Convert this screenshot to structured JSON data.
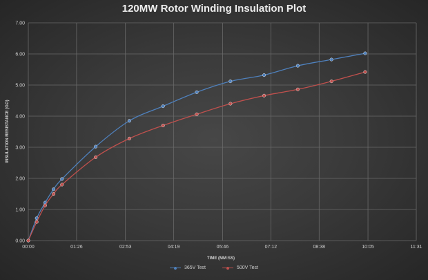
{
  "chart_data": {
    "type": "line",
    "title": "120MW Rotor Winding Insulation Plot",
    "xlabel": "TIME (MM:SS)",
    "ylabel": "INSULATION RESISTANCE (GΩ)",
    "xlim": [
      0,
      691
    ],
    "ylim": [
      0,
      7
    ],
    "x_ticks": [
      {
        "value": 0,
        "label": "00:00"
      },
      {
        "value": 86,
        "label": "01:26"
      },
      {
        "value": 173,
        "label": "02:53"
      },
      {
        "value": 259,
        "label": "04:19"
      },
      {
        "value": 346,
        "label": "05:46"
      },
      {
        "value": 432,
        "label": "07:12"
      },
      {
        "value": 518,
        "label": "08:38"
      },
      {
        "value": 605,
        "label": "10:05"
      },
      {
        "value": 691,
        "label": "11:31"
      }
    ],
    "y_ticks": [
      {
        "value": 0,
        "label": "0.00"
      },
      {
        "value": 1,
        "label": "1.00"
      },
      {
        "value": 2,
        "label": "2.00"
      },
      {
        "value": 3,
        "label": "3.00"
      },
      {
        "value": 4,
        "label": "4.00"
      },
      {
        "value": 5,
        "label": "5.00"
      },
      {
        "value": 6,
        "label": "6.00"
      },
      {
        "value": 7,
        "label": "7.00"
      }
    ],
    "grid": true,
    "legend_position": "bottom",
    "series": [
      {
        "name": "365V Test",
        "color": "#4f81bd",
        "x": [
          0,
          15,
          30,
          45,
          60,
          120,
          180,
          240,
          300,
          360,
          420,
          480,
          540,
          600
        ],
        "y": [
          0.0,
          0.72,
          1.22,
          1.65,
          1.98,
          3.02,
          3.85,
          4.32,
          4.77,
          5.12,
          5.32,
          5.62,
          5.82,
          6.02
        ]
      },
      {
        "name": "500V Test",
        "color": "#c0504d",
        "x": [
          0,
          15,
          30,
          45,
          60,
          120,
          180,
          240,
          300,
          360,
          420,
          480,
          540,
          600
        ],
        "y": [
          0.0,
          0.6,
          1.13,
          1.5,
          1.8,
          2.68,
          3.28,
          3.7,
          4.06,
          4.4,
          4.66,
          4.86,
          5.12,
          5.42
        ]
      }
    ]
  }
}
